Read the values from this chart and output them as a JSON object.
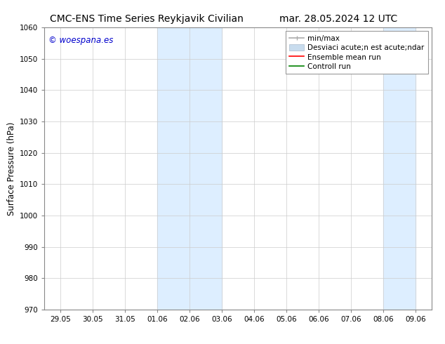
{
  "title_left": "CMC-ENS Time Series Reykjavik Civilian",
  "title_right": "mar. 28.05.2024 12 UTC",
  "ylabel": "Surface Pressure (hPa)",
  "ylim": [
    970,
    1060
  ],
  "yticks": [
    970,
    980,
    990,
    1000,
    1010,
    1020,
    1030,
    1040,
    1050,
    1060
  ],
  "xlabels": [
    "29.05",
    "30.05",
    "31.05",
    "01.06",
    "02.06",
    "03.06",
    "04.06",
    "05.06",
    "06.06",
    "07.06",
    "08.06",
    "09.06"
  ],
  "xvalues": [
    0,
    1,
    2,
    3,
    4,
    5,
    6,
    7,
    8,
    9,
    10,
    11
  ],
  "shaded_regions": [
    {
      "xmin": 3,
      "xmax": 5,
      "color": "#ddeeff"
    },
    {
      "xmin": 10,
      "xmax": 11,
      "color": "#ddeeff"
    }
  ],
  "watermark_text": "© woespana.es",
  "watermark_color": "#0000cc",
  "legend_entry_minmax": "min/max",
  "legend_entry_desvstd": "Desviaci acute;n est acute;ndar",
  "legend_entry_ensemble": "Ensemble mean run",
  "legend_entry_control": "Controll run",
  "legend_color_minmax": "#aaaaaa",
  "legend_color_desvstd": "#c8dcee",
  "legend_color_ensemble": "red",
  "legend_color_control": "green",
  "bg_color": "#ffffff",
  "grid_color": "#cccccc",
  "title_fontsize": 10,
  "tick_fontsize": 7.5,
  "ylabel_fontsize": 8.5,
  "legend_fontsize": 7.5,
  "watermark_fontsize": 8.5
}
